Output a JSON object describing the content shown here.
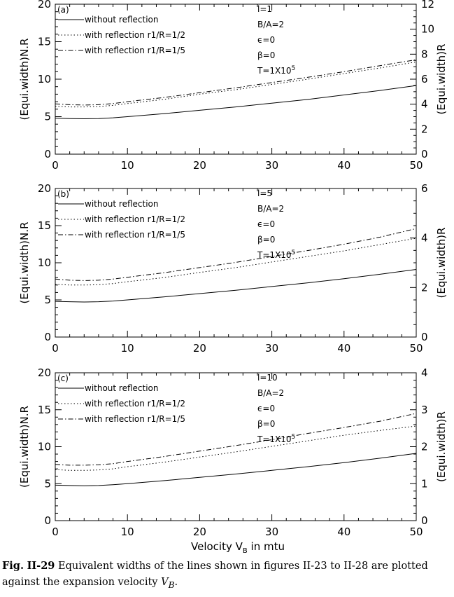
{
  "caption": {
    "prefix": "Fig.",
    "label": "II-29",
    "text": "Equivalent widths of the lines shown in figures II-23 to II-28 are plotted against the expansion velocity",
    "velocity_symbol": "V",
    "velocity_subscript": "B",
    "end": "."
  },
  "chart_data": [
    {
      "type": "line",
      "panel_tag": "(a)",
      "x": [
        0,
        2,
        4,
        6,
        8,
        10,
        15,
        20,
        25,
        30,
        35,
        40,
        45,
        50
      ],
      "series": [
        {
          "name": "without reflection",
          "style": "solid",
          "axis": "left",
          "values": [
            4.8,
            4.75,
            4.72,
            4.75,
            4.85,
            5.0,
            5.4,
            5.85,
            6.3,
            6.8,
            7.3,
            7.9,
            8.5,
            9.15
          ]
        },
        {
          "name": "with reflection r1/R=1/2",
          "style": "dotted",
          "axis": "left",
          "values": [
            6.4,
            6.3,
            6.3,
            6.35,
            6.5,
            6.75,
            7.3,
            8.0,
            8.6,
            9.3,
            10.0,
            10.75,
            11.5,
            12.3
          ]
        },
        {
          "name": "with reflection r1/R=1/5",
          "style": "dashdot",
          "axis": "left",
          "values": [
            6.7,
            6.6,
            6.55,
            6.6,
            6.75,
            7.0,
            7.55,
            8.2,
            8.85,
            9.55,
            10.25,
            11.0,
            11.8,
            12.6
          ]
        }
      ],
      "legend_labels": [
        "without reflection",
        "with reflection r1/R=1/2",
        "with reflection r1/R=1/5"
      ],
      "params": {
        "l": "l=1",
        "ba": "B/A=2",
        "eps": "ϵ=0",
        "beta": "β=0",
        "t_base": "T=1X10",
        "t_exp": "5"
      },
      "ylabel": "(Equi.width)N.R",
      "ylabel_right": "(Equi.width)R",
      "xlim": [
        0,
        50
      ],
      "ylim": [
        0,
        20
      ],
      "ylim_right": [
        0,
        12
      ],
      "xticks": [
        "0",
        "10",
        "20",
        "30",
        "40",
        "50"
      ],
      "yticks": [
        "0",
        "5",
        "10",
        "15",
        "20"
      ],
      "yticks_right": [
        "0",
        "2",
        "4",
        "6",
        "8",
        "10",
        "12"
      ],
      "xlabel": ""
    },
    {
      "type": "line",
      "panel_tag": "(b)",
      "x": [
        0,
        2,
        4,
        6,
        8,
        10,
        15,
        20,
        25,
        30,
        35,
        40,
        45,
        50
      ],
      "series": [
        {
          "name": "without reflection",
          "style": "solid",
          "axis": "left",
          "values": [
            4.8,
            4.75,
            4.72,
            4.75,
            4.85,
            5.0,
            5.4,
            5.85,
            6.3,
            6.8,
            7.3,
            7.85,
            8.45,
            9.1
          ]
        },
        {
          "name": "with reflection r1/R=1/2",
          "style": "dotted",
          "axis": "left",
          "values": [
            7.1,
            7.0,
            7.0,
            7.05,
            7.2,
            7.45,
            8.0,
            8.7,
            9.35,
            10.1,
            10.85,
            11.6,
            12.45,
            13.3
          ]
        },
        {
          "name": "with reflection r1/R=1/5",
          "style": "dashdot",
          "axis": "left",
          "values": [
            7.8,
            7.65,
            7.6,
            7.65,
            7.8,
            8.05,
            8.65,
            9.35,
            10.05,
            10.85,
            11.65,
            12.5,
            13.45,
            14.6
          ]
        }
      ],
      "legend_labels": [
        "without reflection",
        "with reflection r1/R=1/2",
        "with reflection r1/R=1/5"
      ],
      "params": {
        "l": "l=5",
        "ba": "B/A=2",
        "eps": "ϵ=0",
        "beta": "β=0",
        "t_base": "T=1X10",
        "t_exp": "5"
      },
      "ylabel": "(Equi.width)N.R",
      "ylabel_right": "(Equi.width)R",
      "xlim": [
        0,
        50
      ],
      "ylim": [
        0,
        20
      ],
      "ylim_right": [
        0,
        6
      ],
      "xticks": [
        "0",
        "10",
        "20",
        "30",
        "40",
        "50"
      ],
      "yticks": [
        "0",
        "5",
        "10",
        "15",
        "20"
      ],
      "yticks_right": [
        "0",
        "2",
        "4",
        "6"
      ],
      "xlabel": ""
    },
    {
      "type": "line",
      "panel_tag": "(c)",
      "x": [
        0,
        2,
        4,
        6,
        8,
        10,
        15,
        20,
        25,
        30,
        35,
        40,
        45,
        50
      ],
      "series": [
        {
          "name": "without reflection",
          "style": "solid",
          "axis": "left",
          "values": [
            4.8,
            4.75,
            4.72,
            4.75,
            4.85,
            5.0,
            5.4,
            5.85,
            6.3,
            6.8,
            7.3,
            7.85,
            8.45,
            9.1
          ]
        },
        {
          "name": "with reflection r1/R=1/2",
          "style": "dotted",
          "axis": "left",
          "values": [
            6.9,
            6.8,
            6.8,
            6.85,
            7.0,
            7.3,
            7.9,
            8.6,
            9.3,
            10.05,
            10.8,
            11.55,
            12.2,
            12.8
          ]
        },
        {
          "name": "with reflection r1/R=1/5",
          "style": "dashdot",
          "axis": "left",
          "values": [
            7.6,
            7.5,
            7.5,
            7.55,
            7.7,
            8.0,
            8.65,
            9.4,
            10.15,
            10.95,
            11.8,
            12.6,
            13.45,
            14.5
          ]
        }
      ],
      "legend_labels": [
        "without reflection",
        "with reflection r1/R=1/2",
        "with reflection r1/R=1/5"
      ],
      "params": {
        "l": "l=10",
        "ba": "B/A=2",
        "eps": "ϵ=0",
        "beta": "β=0",
        "t_base": "T=1X10",
        "t_exp": "5"
      },
      "ylabel": "(Equi.width)N.R",
      "ylabel_right": "(Equi.width)R",
      "xlim": [
        0,
        50
      ],
      "ylim": [
        0,
        20
      ],
      "ylim_right": [
        0,
        4
      ],
      "xticks": [
        "0",
        "10",
        "20",
        "30",
        "40",
        "50"
      ],
      "yticks": [
        "0",
        "5",
        "10",
        "15",
        "20"
      ],
      "yticks_right": [
        "0",
        "1",
        "2",
        "3",
        "4"
      ],
      "xlabel": "Velocity V",
      "xlabel_subscript": "B",
      "xlabel_suffix": " in mtu"
    }
  ]
}
